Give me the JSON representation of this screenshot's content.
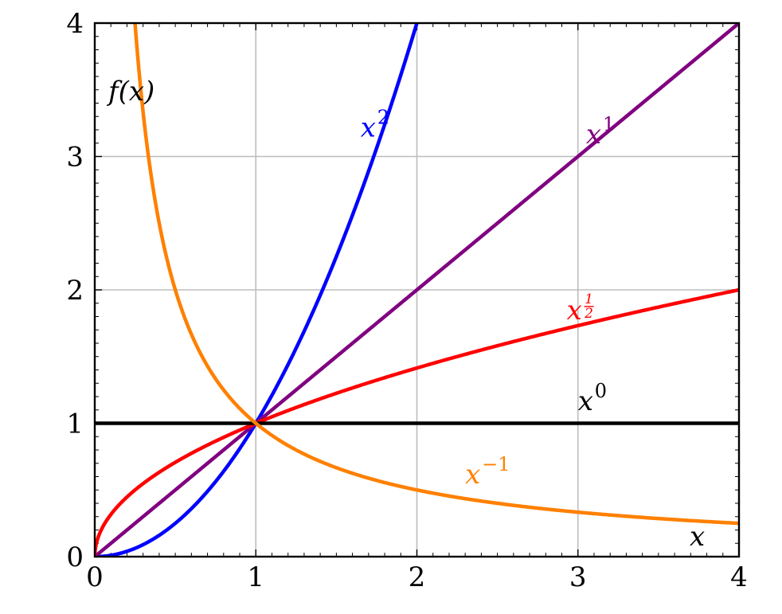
{
  "chart_data": {
    "type": "line",
    "title": "",
    "xlabel": "x",
    "ylabel": "f(x)",
    "xlim": [
      0,
      4
    ],
    "ylim": [
      0,
      4
    ],
    "grid": true,
    "x_ticks": [
      "0",
      "1",
      "2",
      "3",
      "4"
    ],
    "y_ticks": [
      "0",
      "1",
      "2",
      "3",
      "4"
    ],
    "series": [
      {
        "name": "x^2",
        "base": "x",
        "exponent": "2",
        "power": 2,
        "color": "#0000ff",
        "label_at": [
          1.65,
          3.15
        ]
      },
      {
        "name": "x^1",
        "base": "x",
        "exponent": "1",
        "power": 1,
        "color": "#800080",
        "label_at": [
          3.05,
          3.1
        ]
      },
      {
        "name": "x^(1/2)",
        "base": "x",
        "exponent_num": "1",
        "exponent_den": "2",
        "power": 0.5,
        "color": "#ff0000",
        "label_at": [
          2.93,
          1.78
        ]
      },
      {
        "name": "x^0",
        "base": "x",
        "exponent": "0",
        "power": 0,
        "color": "#000000",
        "label_at": [
          3.0,
          1.1
        ]
      },
      {
        "name": "x^-1",
        "base": "x",
        "exponent": "−1",
        "power": -1,
        "color": "#ff8000",
        "label_at": [
          2.3,
          0.55
        ]
      }
    ]
  }
}
